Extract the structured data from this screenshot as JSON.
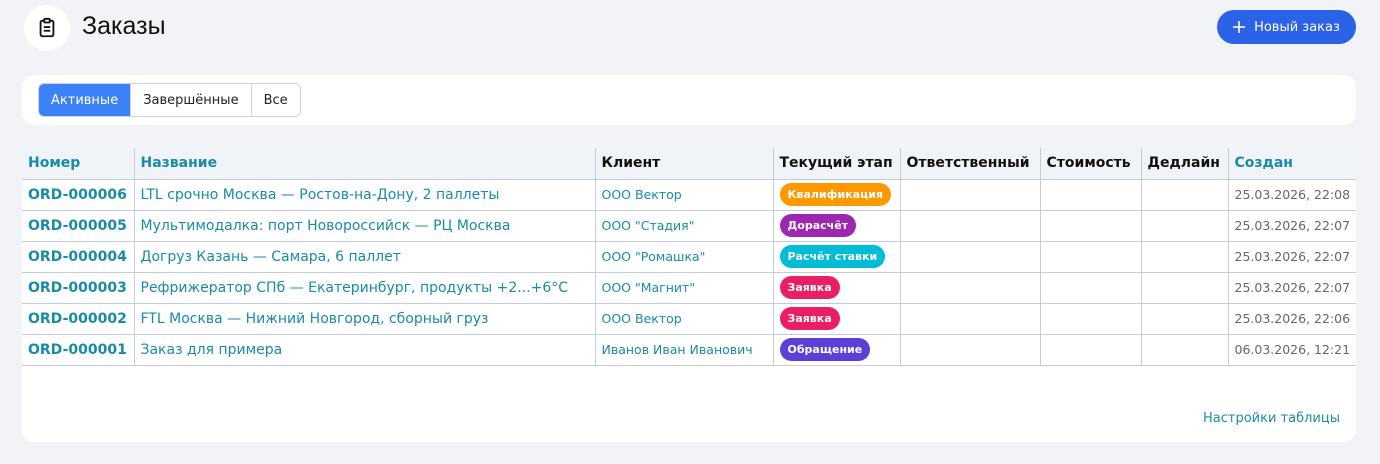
{
  "header": {
    "title": "Заказы",
    "new_button": "Новый заказ"
  },
  "tabs": [
    {
      "label": "Активные",
      "active": true
    },
    {
      "label": "Завершённые",
      "active": false
    },
    {
      "label": "Все",
      "active": false
    }
  ],
  "table": {
    "columns": [
      {
        "label": "Номер",
        "sortable": true
      },
      {
        "label": "Название",
        "sortable": true
      },
      {
        "label": "Клиент",
        "sortable": false
      },
      {
        "label": "Текущий этап",
        "sortable": false
      },
      {
        "label": "Ответственный",
        "sortable": false
      },
      {
        "label": "Стоимость",
        "sortable": false
      },
      {
        "label": "Дедлайн",
        "sortable": false
      },
      {
        "label": "Создан",
        "sortable": true
      }
    ],
    "rows": [
      {
        "number": "ORD-000006",
        "name": "LTL срочно Москва — Ростов-на-Дону, 2 паллеты",
        "client": "ООО Вектор",
        "stage": "Квалификация",
        "stage_color": "#ff9800",
        "created": "25.03.2026, 22:08"
      },
      {
        "number": "ORD-000005",
        "name": "Мультимодалка: порт Новороссийск — РЦ Москва",
        "client": "ООО \"Стадия\"",
        "stage": "Дорасчёт",
        "stage_color": "#9c27b0",
        "created": "25.03.2026, 22:07"
      },
      {
        "number": "ORD-000004",
        "name": "Догруз Казань — Самара, 6 паллет",
        "client": "ООО \"Ромашка\"",
        "stage": "Расчёт ставки",
        "stage_color": "#00bcd4",
        "created": "25.03.2026, 22:07"
      },
      {
        "number": "ORD-000003",
        "name": "Рефрижератор СПб — Екатеринбург, продукты +2...+6°C",
        "client": "ООО \"Магнит\"",
        "stage": "Заявка",
        "stage_color": "#e91e63",
        "created": "25.03.2026, 22:07"
      },
      {
        "number": "ORD-000002",
        "name": "FTL Москва — Нижний Новгород, сборный груз",
        "client": "ООО Вектор",
        "stage": "Заявка",
        "stage_color": "#e91e63",
        "created": "25.03.2026, 22:06"
      },
      {
        "number": "ORD-000001",
        "name": "Заказ для примера",
        "client": "Иванов Иван Иванович",
        "stage": "Обращение",
        "stage_color": "#5b3fd8",
        "created": "06.03.2026, 12:21"
      }
    ]
  },
  "footer_link": "Настройки таблицы"
}
